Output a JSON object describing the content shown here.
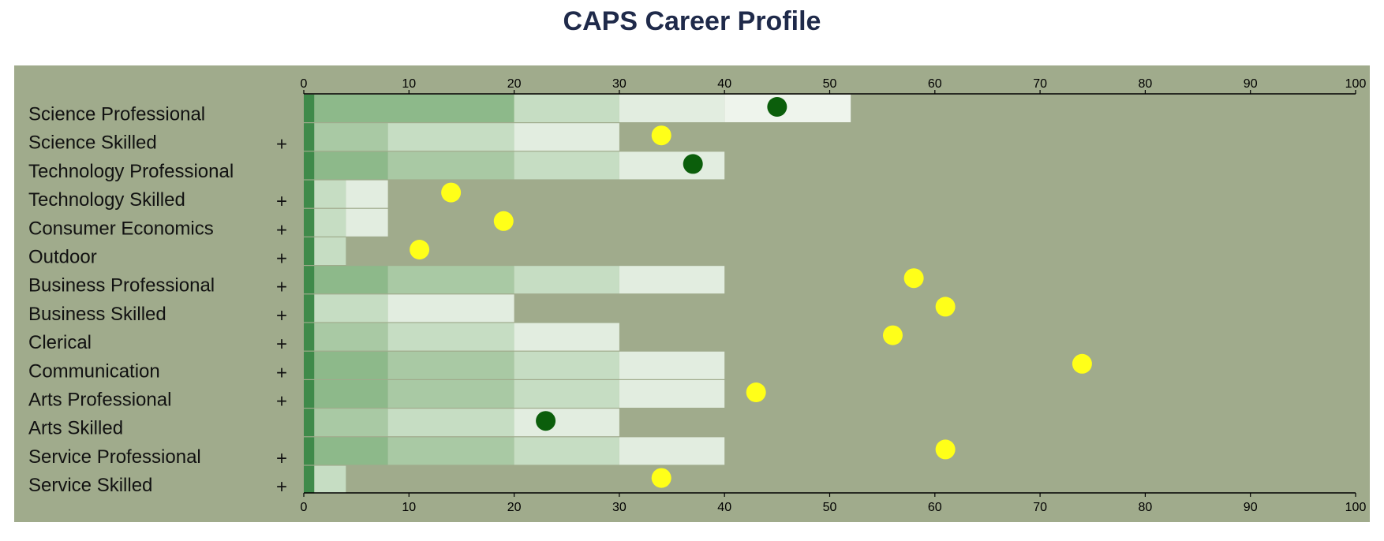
{
  "chart_data": {
    "type": "bar",
    "title": "CAPS Career Profile",
    "xlim": [
      0,
      100
    ],
    "x_ticks": [
      "0",
      "10",
      "20",
      "30",
      "40",
      "50",
      "60",
      "70",
      "80",
      "90",
      "100"
    ],
    "band_edges": [
      0,
      1,
      8,
      20,
      30,
      40,
      52
    ],
    "colors": {
      "panel_bg": "#a0ab8c",
      "band_colors": [
        "#3f8a4a",
        "#8db98a",
        "#a9c9a4",
        "#c6ddc3",
        "#e2ede0",
        "#eef4ec"
      ],
      "marker_high": "#0b5e0b",
      "marker_low": "#ffff19",
      "axis": "#000000"
    },
    "categories": [
      "Science Professional",
      "Science Skilled",
      "Technology Professional",
      "Technology Skilled",
      "Consumer Economics",
      "Outdoor",
      "Business Professional",
      "Business Skilled",
      "Clerical",
      "Communication",
      "Arts Professional",
      "Arts Skilled",
      "Service Professional",
      "Service Skilled"
    ],
    "plus_marks": [
      "",
      "+",
      "",
      "+",
      "+",
      "+",
      "+",
      "+",
      "+",
      "+",
      "+",
      "",
      "+",
      "+"
    ],
    "bar_bands": [
      [
        0,
        1,
        20,
        30,
        40,
        52
      ],
      [
        0,
        1,
        8,
        20,
        30
      ],
      [
        0,
        1,
        8,
        20,
        30,
        40
      ],
      [
        0,
        1,
        4,
        8
      ],
      [
        0,
        1,
        4,
        8
      ],
      [
        0,
        1,
        4
      ],
      [
        0,
        1,
        8,
        20,
        30,
        40
      ],
      [
        0,
        1,
        8,
        20
      ],
      [
        0,
        1,
        8,
        20,
        30
      ],
      [
        0,
        1,
        8,
        20,
        30,
        40
      ],
      [
        0,
        1,
        8,
        20,
        30,
        40
      ],
      [
        0,
        1,
        8,
        20,
        30
      ],
      [
        0,
        1,
        8,
        20,
        30,
        40
      ],
      [
        0,
        1,
        4
      ]
    ],
    "bar_band_classes": [
      [
        0,
        1,
        3,
        4,
        5
      ],
      [
        0,
        2,
        3,
        4
      ],
      [
        0,
        1,
        2,
        3,
        4
      ],
      [
        0,
        3,
        4
      ],
      [
        0,
        3,
        4
      ],
      [
        0,
        3
      ],
      [
        0,
        1,
        2,
        3,
        4
      ],
      [
        0,
        3,
        4
      ],
      [
        0,
        2,
        3,
        4
      ],
      [
        0,
        1,
        2,
        3,
        4
      ],
      [
        0,
        1,
        2,
        3,
        4
      ],
      [
        0,
        2,
        3,
        4
      ],
      [
        0,
        1,
        2,
        3,
        4
      ],
      [
        0,
        3
      ]
    ],
    "scores": [
      45,
      34,
      37,
      14,
      19,
      11,
      58,
      61,
      56,
      74,
      43,
      23,
      61,
      34
    ],
    "score_markers": [
      "high",
      "low",
      "high",
      "low",
      "low",
      "low",
      "low",
      "low",
      "low",
      "low",
      "low",
      "high",
      "low",
      "low"
    ],
    "grid": false
  }
}
